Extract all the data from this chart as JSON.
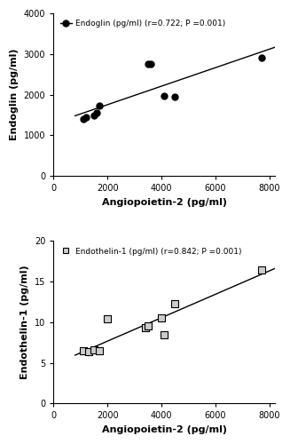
{
  "plot1": {
    "x": [
      1100,
      1200,
      1500,
      1600,
      1700,
      3500,
      3600,
      4100,
      4500,
      7700
    ],
    "y": [
      1390,
      1450,
      1480,
      1560,
      1720,
      2750,
      2750,
      1970,
      1950,
      2900
    ],
    "xlabel": "Angiopoietin-2 (pg/ml)",
    "ylabel": "Endoglin (pg/ml)",
    "legend_label": "Endoglin (pg/ml) (r=0.722; P =0.001)",
    "xlim": [
      0,
      8200
    ],
    "ylim": [
      0,
      4000
    ],
    "xticks": [
      0,
      2000,
      4000,
      6000,
      8000
    ],
    "yticks": [
      0,
      1000,
      2000,
      3000,
      4000
    ],
    "line_xrange": [
      800,
      8200
    ]
  },
  "plot2": {
    "x": [
      1100,
      1300,
      1500,
      1700,
      2000,
      3400,
      3500,
      4000,
      4100,
      4500,
      7700
    ],
    "y": [
      6.5,
      6.4,
      6.6,
      6.5,
      10.4,
      9.3,
      9.5,
      10.5,
      8.4,
      12.3,
      16.4
    ],
    "xlabel": "Angiopoietin-2 (pg/ml)",
    "ylabel": "Endothelin-1 (pg/ml)",
    "legend_label": "Endothelin-1 (pg/ml) (r=0.842; P =0.001)",
    "xlim": [
      0,
      8200
    ],
    "ylim": [
      0,
      20
    ],
    "xticks": [
      0,
      2000,
      4000,
      6000,
      8000
    ],
    "yticks": [
      0,
      5,
      10,
      15,
      20
    ],
    "line_xrange": [
      800,
      8200
    ]
  },
  "line_color": "#000000",
  "marker_color": "#000000",
  "bg_color": "#ffffff",
  "font_size": 7,
  "label_font_size": 8
}
